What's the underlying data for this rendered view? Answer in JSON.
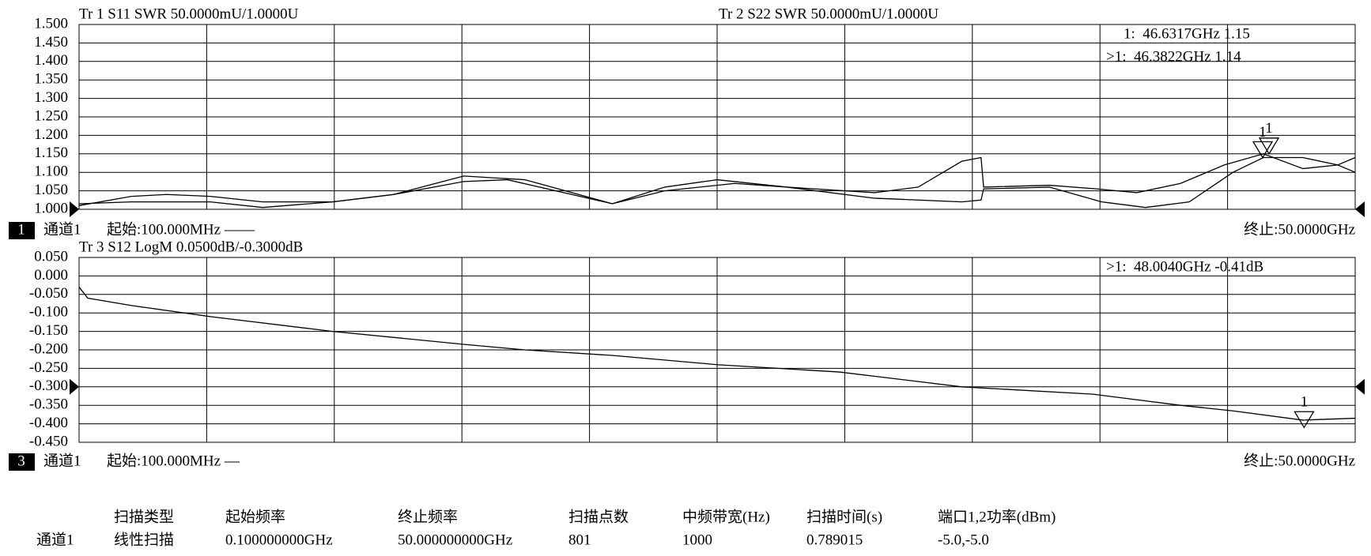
{
  "chart_data": [
    {
      "type": "line",
      "titles": [
        "Tr 1  S11 SWR 50.0000mU/1.0000U",
        "Tr 2  S22 SWR 50.0000mU/1.0000U"
      ],
      "readouts": [
        "1:  46.6317GHz 1.15",
        ">1:  46.3822GHz 1.14"
      ],
      "xlim": [
        0.1,
        50
      ],
      "ylim": [
        1.0,
        1.5
      ],
      "reference_level": 1.0,
      "yticks": [
        {
          "value": 1.5,
          "label": "1.500"
        },
        {
          "value": 1.45,
          "label": "1.450"
        },
        {
          "value": 1.4,
          "label": "1.400"
        },
        {
          "value": 1.35,
          "label": "1.350"
        },
        {
          "value": 1.3,
          "label": "1.300"
        },
        {
          "value": 1.25,
          "label": "1.250"
        },
        {
          "value": 1.2,
          "label": "1.200"
        },
        {
          "value": 1.15,
          "label": "1.150"
        },
        {
          "value": 1.1,
          "label": "1.100"
        },
        {
          "value": 1.05,
          "label": "1.050"
        },
        {
          "value": 1.0,
          "label": "1.000"
        }
      ],
      "series": [
        {
          "name": "S11",
          "color": "#000000",
          "x": [
            0.1,
            2.15,
            3.52,
            5.23,
            7.28,
            10.01,
            12.4,
            15.14,
            17.53,
            20.95,
            23.0,
            25.05,
            27.78,
            31.2,
            32.91,
            34.62,
            35.37,
            35.47,
            38.04,
            39.92,
            41.46,
            43.17,
            44.88,
            46.41,
            47.95,
            49.32,
            50
          ],
          "values": [
            1.01,
            1.035,
            1.04,
            1.035,
            1.02,
            1.02,
            1.04,
            1.09,
            1.08,
            1.015,
            1.06,
            1.08,
            1.06,
            1.045,
            1.06,
            1.13,
            1.14,
            1.06,
            1.065,
            1.055,
            1.045,
            1.07,
            1.12,
            1.15,
            1.11,
            1.12,
            1.14
          ]
        },
        {
          "name": "S22",
          "color": "#000000",
          "x": [
            0.1,
            2.15,
            5.23,
            7.28,
            10.01,
            12.4,
            15.14,
            16.85,
            20.95,
            23.0,
            25.74,
            27.78,
            31.2,
            34.62,
            35.37,
            35.47,
            38.04,
            40.09,
            41.8,
            43.51,
            45.22,
            46.41,
            47.95,
            49.32,
            50
          ],
          "values": [
            1.015,
            1.02,
            1.02,
            1.005,
            1.02,
            1.04,
            1.075,
            1.08,
            1.015,
            1.05,
            1.07,
            1.06,
            1.03,
            1.02,
            1.025,
            1.055,
            1.06,
            1.02,
            1.005,
            1.02,
            1.1,
            1.14,
            1.14,
            1.12,
            1.1
          ]
        }
      ],
      "markers": [
        {
          "label": "1",
          "x": 46.6317,
          "y": 1.15
        },
        {
          "label": "1",
          "x": 46.3822,
          "y": 1.14
        }
      ],
      "channel": {
        "number": "1",
        "name": "通道1",
        "start": "起始:100.000MHz ——",
        "stop": "终止:50.0000GHz"
      }
    },
    {
      "type": "line",
      "titles": [
        "Tr 3  S12 LogM 0.0500dB/-0.3000dB"
      ],
      "readouts": [
        ">1:  48.0040GHz -0.41dB"
      ],
      "xlim": [
        0.1,
        50
      ],
      "ylim": [
        -0.45,
        0.05
      ],
      "reference_level": -0.3,
      "yticks": [
        {
          "value": 0.05,
          "label": "0.050"
        },
        {
          "value": 0.0,
          "label": "0.000"
        },
        {
          "value": -0.05,
          "label": "-0.050"
        },
        {
          "value": -0.1,
          "label": "-0.100"
        },
        {
          "value": -0.15,
          "label": "-0.150"
        },
        {
          "value": -0.2,
          "label": "-0.200"
        },
        {
          "value": -0.25,
          "label": "-0.250"
        },
        {
          "value": -0.3,
          "label": "-0.300"
        },
        {
          "value": -0.35,
          "label": "-0.350"
        },
        {
          "value": -0.4,
          "label": "-0.400"
        },
        {
          "value": -0.45,
          "label": "-0.450"
        }
      ],
      "series": [
        {
          "name": "S12",
          "color": "#000000",
          "x": [
            0.1,
            0.44,
            2.15,
            5.23,
            10.01,
            15.14,
            17.53,
            20.95,
            25.05,
            29.84,
            34.62,
            39.75,
            43.17,
            45.22,
            47.95,
            50
          ],
          "values": [
            -0.03,
            -0.06,
            -0.08,
            -0.11,
            -0.15,
            -0.185,
            -0.2,
            -0.215,
            -0.24,
            -0.26,
            -0.3,
            -0.32,
            -0.35,
            -0.365,
            -0.39,
            -0.385
          ]
        }
      ],
      "markers": [
        {
          "label": "1",
          "x": 48.004,
          "y": -0.41
        }
      ],
      "channel": {
        "number": "3",
        "name": "通道1",
        "start": "起始:100.000MHz —",
        "stop": "终止:50.0000GHz"
      }
    }
  ],
  "table": {
    "row_label": "通道1",
    "headers": [
      "扫描类型",
      "起始频率",
      "终止频率",
      "扫描点数",
      "中频带宽(Hz)",
      "扫描时间(s)",
      "端口1,2功率(dBm)"
    ],
    "row": [
      "线性扫描",
      "0.100000000GHz",
      "50.000000000GHz",
      "801",
      "1000",
      "0.789015",
      "-5.0,-5.0"
    ]
  }
}
